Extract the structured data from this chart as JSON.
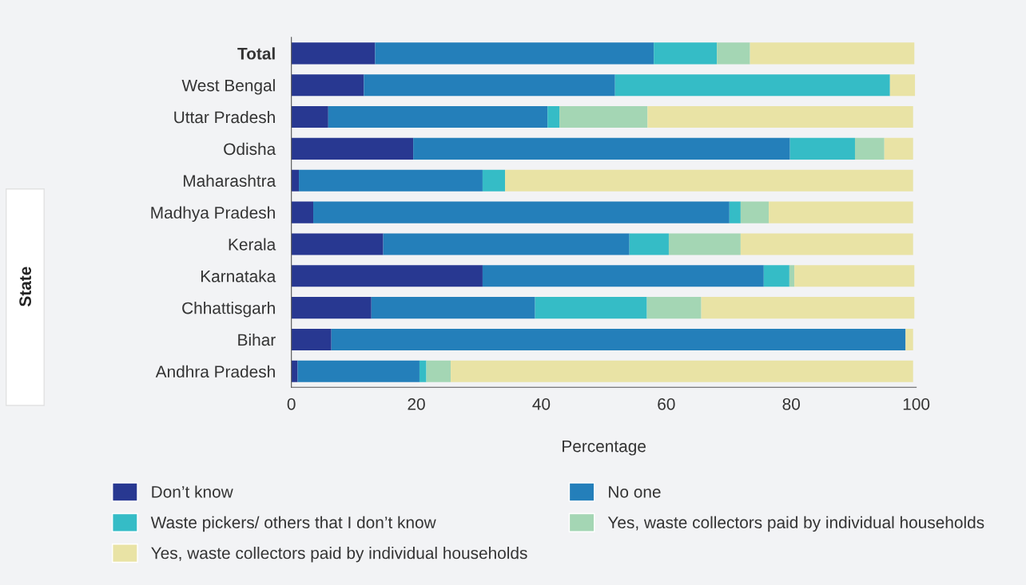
{
  "chart_data": {
    "type": "bar",
    "orientation": "horizontal",
    "stacked": true,
    "xlabel": "Percentage",
    "annotations": [
      "State"
    ],
    "categories": [
      "Total",
      "West Bengal",
      "Uttar Pradesh",
      "Odisha",
      "Maharashtra",
      "Madhya Pradesh",
      "Kerala",
      "Karnataka",
      "Chhattisgarh",
      "Bihar",
      "Andhra Pradesh"
    ],
    "xlim": [
      0,
      100
    ],
    "xticks": [
      0,
      20,
      40,
      60,
      80,
      100
    ],
    "grid": false,
    "legend": "bottom",
    "series": [
      {
        "name": "Don’t know",
        "color": "#283891",
        "values": [
          13.4,
          11.6,
          5.9,
          19.5,
          1.2,
          3.5,
          14.7,
          30.6,
          12.8,
          6.4,
          1.0
        ]
      },
      {
        "name": "No one",
        "color": "#247fba",
        "values": [
          44.6,
          40.2,
          35.1,
          60.3,
          29.4,
          66.6,
          39.4,
          45.0,
          26.2,
          91.9,
          19.5
        ]
      },
      {
        "name": "Waste pickers/ others that I don’t know",
        "color": "#35bcc6",
        "values": [
          10.1,
          44.0,
          1.9,
          10.4,
          3.6,
          1.8,
          6.3,
          4.1,
          17.9,
          0,
          1.1
        ]
      },
      {
        "name": "Yes, waste collectors paid by individual households",
        "color": "#a4d6b4",
        "values": [
          5.3,
          0,
          14.1,
          4.7,
          0,
          4.5,
          11.5,
          0.8,
          8.7,
          0,
          3.9
        ]
      },
      {
        "name": "Yes, waste collectors paid by individual households",
        "color": "#e9e3a5",
        "values": [
          26.3,
          4.0,
          42.5,
          4.6,
          65.3,
          23.1,
          27.6,
          19.2,
          34.1,
          1.2,
          74.0
        ]
      }
    ]
  }
}
